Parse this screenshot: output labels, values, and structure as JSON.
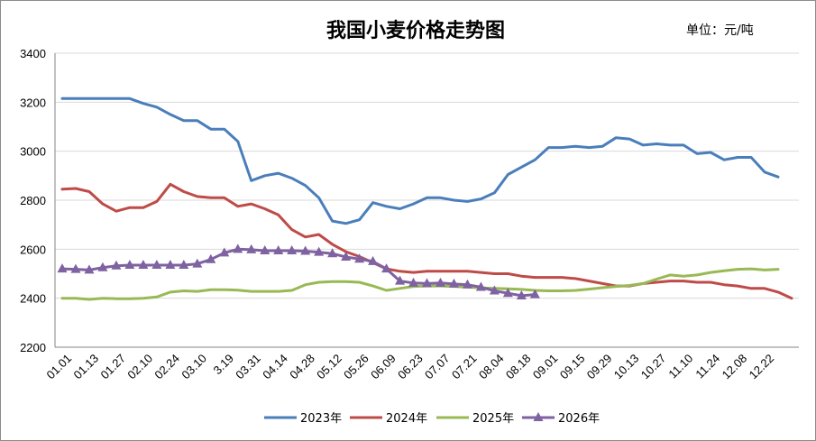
{
  "chart_data": {
    "type": "line",
    "title": "我国小麦价格走势图",
    "unit_label": "单位：元/吨",
    "yticks": [
      2200,
      2400,
      2600,
      2800,
      3000,
      3200,
      3400
    ],
    "ylim": [
      2200,
      3400
    ],
    "grid": true,
    "legend_position": "bottom",
    "x_labels": [
      "01.01",
      "01.13",
      "01.27",
      "02.10",
      "02.24",
      "03.10",
      "3.19",
      "03.31",
      "04.14",
      "04.28",
      "05.12",
      "05.26",
      "06.09",
      "06.23",
      "07.07",
      "07.21",
      "08.04",
      "08.18",
      "09.01",
      "09.15",
      "09.29",
      "10.13",
      "10.27",
      "11.10",
      "11.24",
      "12.08",
      "12.22"
    ],
    "series": [
      {
        "name": "2023年",
        "color": "#4a7ebb",
        "marker": "none",
        "values": [
          3215,
          3215,
          3215,
          3215,
          3215,
          3215,
          3195,
          3180,
          3150,
          3125,
          3125,
          3090,
          3090,
          3040,
          2880,
          2900,
          2910,
          2890,
          2860,
          2810,
          2715,
          2705,
          2720,
          2790,
          2775,
          2765,
          2785,
          2810,
          2810,
          2800,
          2795,
          2805,
          2830,
          2905,
          2935,
          2965,
          3015,
          3015,
          3020,
          3015,
          3020,
          3055,
          3050,
          3025,
          3030,
          3025,
          3025,
          2990,
          2995,
          2965,
          2975,
          2975,
          2915,
          2895
        ]
      },
      {
        "name": "2024年",
        "color": "#be4b48",
        "marker": "none",
        "values": [
          2845,
          2848,
          2835,
          2785,
          2755,
          2770,
          2770,
          2795,
          2865,
          2835,
          2815,
          2810,
          2810,
          2775,
          2785,
          2765,
          2740,
          2680,
          2650,
          2660,
          2620,
          2590,
          2570,
          2545,
          2520,
          2510,
          2505,
          2510,
          2510,
          2510,
          2510,
          2505,
          2500,
          2500,
          2490,
          2485,
          2485,
          2485,
          2480,
          2470,
          2460,
          2450,
          2450,
          2460,
          2465,
          2470,
          2470,
          2465,
          2465,
          2455,
          2450,
          2440,
          2440,
          2425,
          2400
        ]
      },
      {
        "name": "2025年",
        "color": "#98b954",
        "marker": "none",
        "values": [
          2400,
          2400,
          2395,
          2400,
          2398,
          2398,
          2400,
          2405,
          2425,
          2430,
          2428,
          2435,
          2435,
          2433,
          2428,
          2428,
          2428,
          2432,
          2455,
          2465,
          2468,
          2468,
          2465,
          2450,
          2432,
          2440,
          2448,
          2450,
          2450,
          2448,
          2445,
          2442,
          2440,
          2438,
          2436,
          2432,
          2430,
          2430,
          2432,
          2437,
          2443,
          2448,
          2452,
          2460,
          2478,
          2495,
          2490,
          2495,
          2505,
          2512,
          2518,
          2520,
          2515,
          2518
        ]
      },
      {
        "name": "2026年",
        "color": "#7e62a1",
        "marker": "triangle",
        "values": [
          2520,
          2518,
          2515,
          2525,
          2532,
          2535,
          2535,
          2535,
          2535,
          2535,
          2540,
          2558,
          2585,
          2600,
          2598,
          2594,
          2594,
          2594,
          2592,
          2588,
          2582,
          2568,
          2560,
          2550,
          2520,
          2470,
          2462,
          2460,
          2462,
          2458,
          2455,
          2445,
          2430,
          2420,
          2410,
          2415
        ]
      }
    ]
  }
}
